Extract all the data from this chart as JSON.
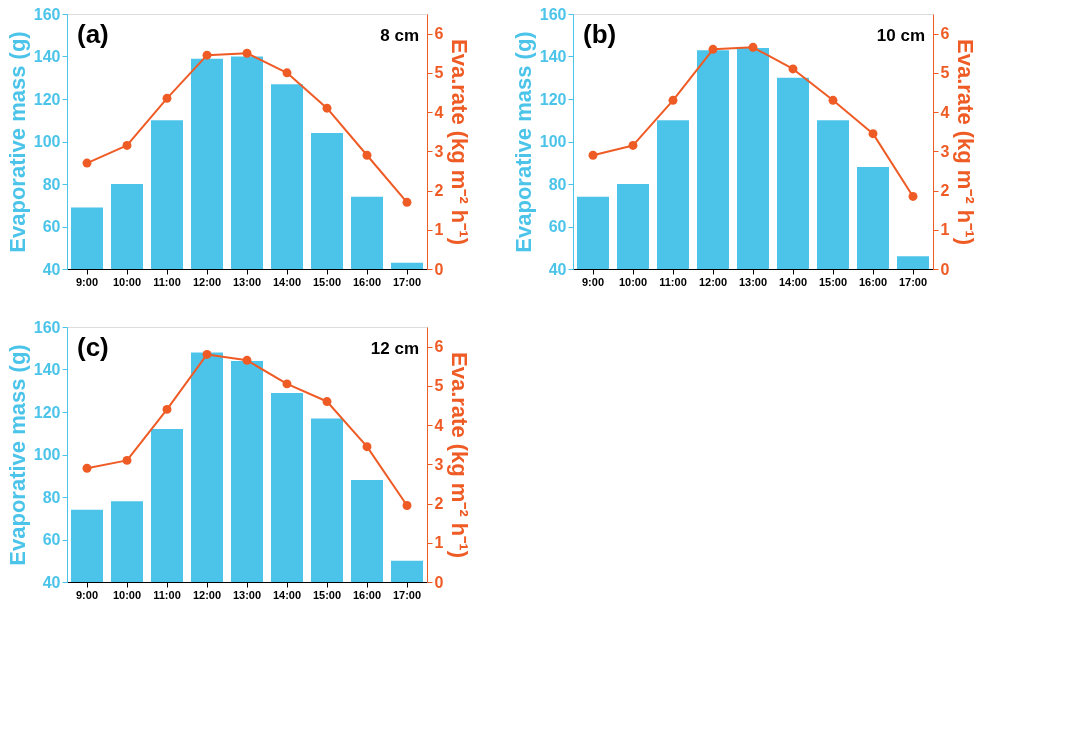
{
  "chart_data": [
    {
      "type": "bar",
      "title": "(a)",
      "annotations": [
        "8 cm"
      ],
      "ylabel": "Evaporative mass (g)",
      "y2label": "Eva.rate (kg m⁻² h⁻¹)",
      "categories": [
        "9:00",
        "10:00",
        "11:00",
        "12:00",
        "13:00",
        "14:00",
        "15:00",
        "16:00",
        "17:00"
      ],
      "series": [
        {
          "color": "#4cc4ea",
          "values": [
            69,
            80,
            110,
            139,
            140,
            127,
            104,
            74,
            43
          ]
        },
        {
          "type": "line",
          "axis": "y2",
          "color": "#ef5b25",
          "marker": "circle",
          "values": [
            2.7,
            3.15,
            4.35,
            5.45,
            5.5,
            5.0,
            4.1,
            2.9,
            1.7
          ]
        }
      ],
      "ylim": [
        40,
        160
      ],
      "yticks": [
        40,
        60,
        80,
        100,
        120,
        140,
        160
      ],
      "y2lim": [
        0,
        6.5
      ],
      "y2ticks": [
        0,
        1,
        2,
        3,
        4,
        5,
        6
      ]
    },
    {
      "type": "bar",
      "title": "(b)",
      "annotations": [
        "10 cm"
      ],
      "ylabel": "Evaporative mass (g)",
      "y2label": "Eva.rate (kg m⁻² h⁻¹)",
      "categories": [
        "9:00",
        "10:00",
        "11:00",
        "12:00",
        "13:00",
        "14:00",
        "15:00",
        "16:00",
        "17:00"
      ],
      "series": [
        {
          "color": "#4cc4ea",
          "values": [
            74,
            80,
            110,
            143,
            144,
            130,
            110,
            88,
            46
          ]
        },
        {
          "type": "line",
          "axis": "y2",
          "color": "#ef5b25",
          "marker": "circle",
          "values": [
            2.9,
            3.15,
            4.3,
            5.6,
            5.65,
            5.1,
            4.3,
            3.45,
            1.85
          ]
        }
      ],
      "ylim": [
        40,
        160
      ],
      "yticks": [
        40,
        60,
        80,
        100,
        120,
        140,
        160
      ],
      "y2lim": [
        0,
        6.5
      ],
      "y2ticks": [
        0,
        1,
        2,
        3,
        4,
        5,
        6
      ]
    },
    {
      "type": "bar",
      "title": "(c)",
      "annotations": [
        "12 cm"
      ],
      "ylabel": "Evaporative mass (g)",
      "y2label": "Eva.rate (kg m⁻² h⁻¹)",
      "categories": [
        "9:00",
        "10:00",
        "11:00",
        "12:00",
        "13:00",
        "14:00",
        "15:00",
        "16:00",
        "17:00"
      ],
      "series": [
        {
          "color": "#4cc4ea",
          "values": [
            74,
            78,
            112,
            148,
            144,
            129,
            117,
            88,
            50
          ]
        },
        {
          "type": "line",
          "axis": "y2",
          "color": "#ef5b25",
          "marker": "circle",
          "values": [
            2.9,
            3.1,
            4.4,
            5.8,
            5.65,
            5.05,
            4.6,
            3.45,
            1.95
          ]
        }
      ],
      "ylim": [
        40,
        160
      ],
      "yticks": [
        40,
        60,
        80,
        100,
        120,
        140,
        160
      ],
      "y2lim": [
        0,
        6.5
      ],
      "y2ticks": [
        0,
        1,
        2,
        3,
        4,
        5,
        6
      ]
    }
  ]
}
